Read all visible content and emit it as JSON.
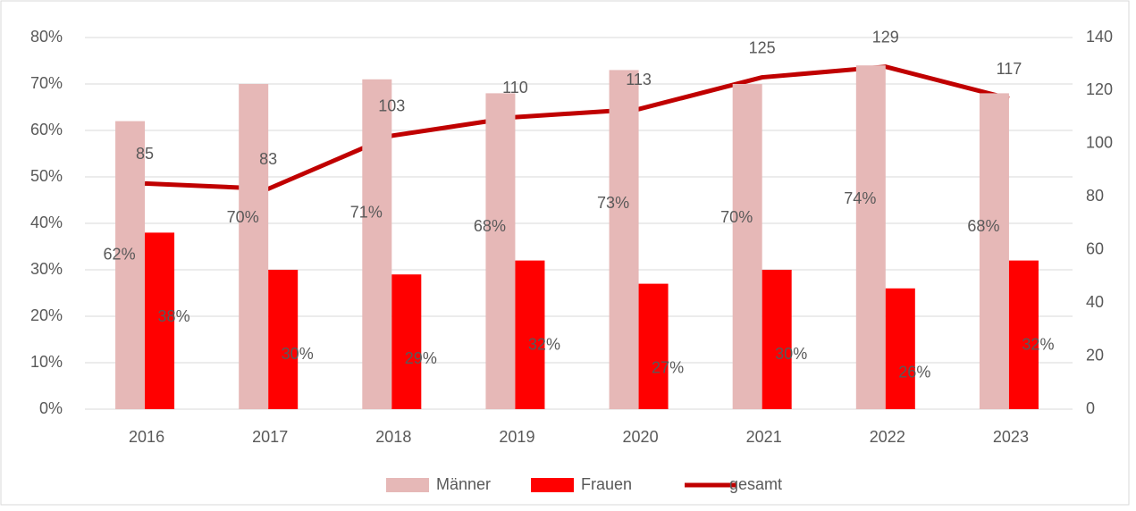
{
  "chart_data": {
    "type": "bar-line",
    "categories": [
      "2016",
      "2017",
      "2018",
      "2019",
      "2020",
      "2021",
      "2022",
      "2023"
    ],
    "series": [
      {
        "name": "Männer",
        "color": "#e6b8b7",
        "type": "bar",
        "values": [
          62,
          70,
          71,
          68,
          73,
          70,
          74,
          68
        ],
        "value_labels": [
          "62%",
          "70%",
          "71%",
          "68%",
          "73%",
          "70%",
          "74%",
          "68%"
        ]
      },
      {
        "name": "Frauen",
        "color": "#ff0000",
        "type": "bar",
        "values": [
          38,
          30,
          29,
          32,
          27,
          30,
          26,
          32
        ],
        "value_labels": [
          "38%",
          "30%",
          "29%",
          "32%",
          "27%",
          "30%",
          "26%",
          "32%"
        ]
      },
      {
        "name": "gesamt",
        "color": "#c00000",
        "type": "line",
        "axis": "y2",
        "values": [
          85,
          83,
          103,
          110,
          113,
          125,
          129,
          117
        ]
      }
    ],
    "ylim": [
      0,
      80
    ],
    "yticks": [
      {
        "value": 0,
        "label": "0%"
      },
      {
        "value": 10,
        "label": "10%"
      },
      {
        "value": 20,
        "label": "20%"
      },
      {
        "value": 30,
        "label": "30%"
      },
      {
        "value": 40,
        "label": "40%"
      },
      {
        "value": 50,
        "label": "50%"
      },
      {
        "value": 60,
        "label": "60%"
      },
      {
        "value": 70,
        "label": "70%"
      },
      {
        "value": 80,
        "label": "80%"
      }
    ],
    "y2lim": [
      0,
      140
    ],
    "y2ticks": [
      0,
      20,
      40,
      60,
      80,
      100,
      120,
      140
    ],
    "grid": true,
    "legend": "bottom"
  }
}
